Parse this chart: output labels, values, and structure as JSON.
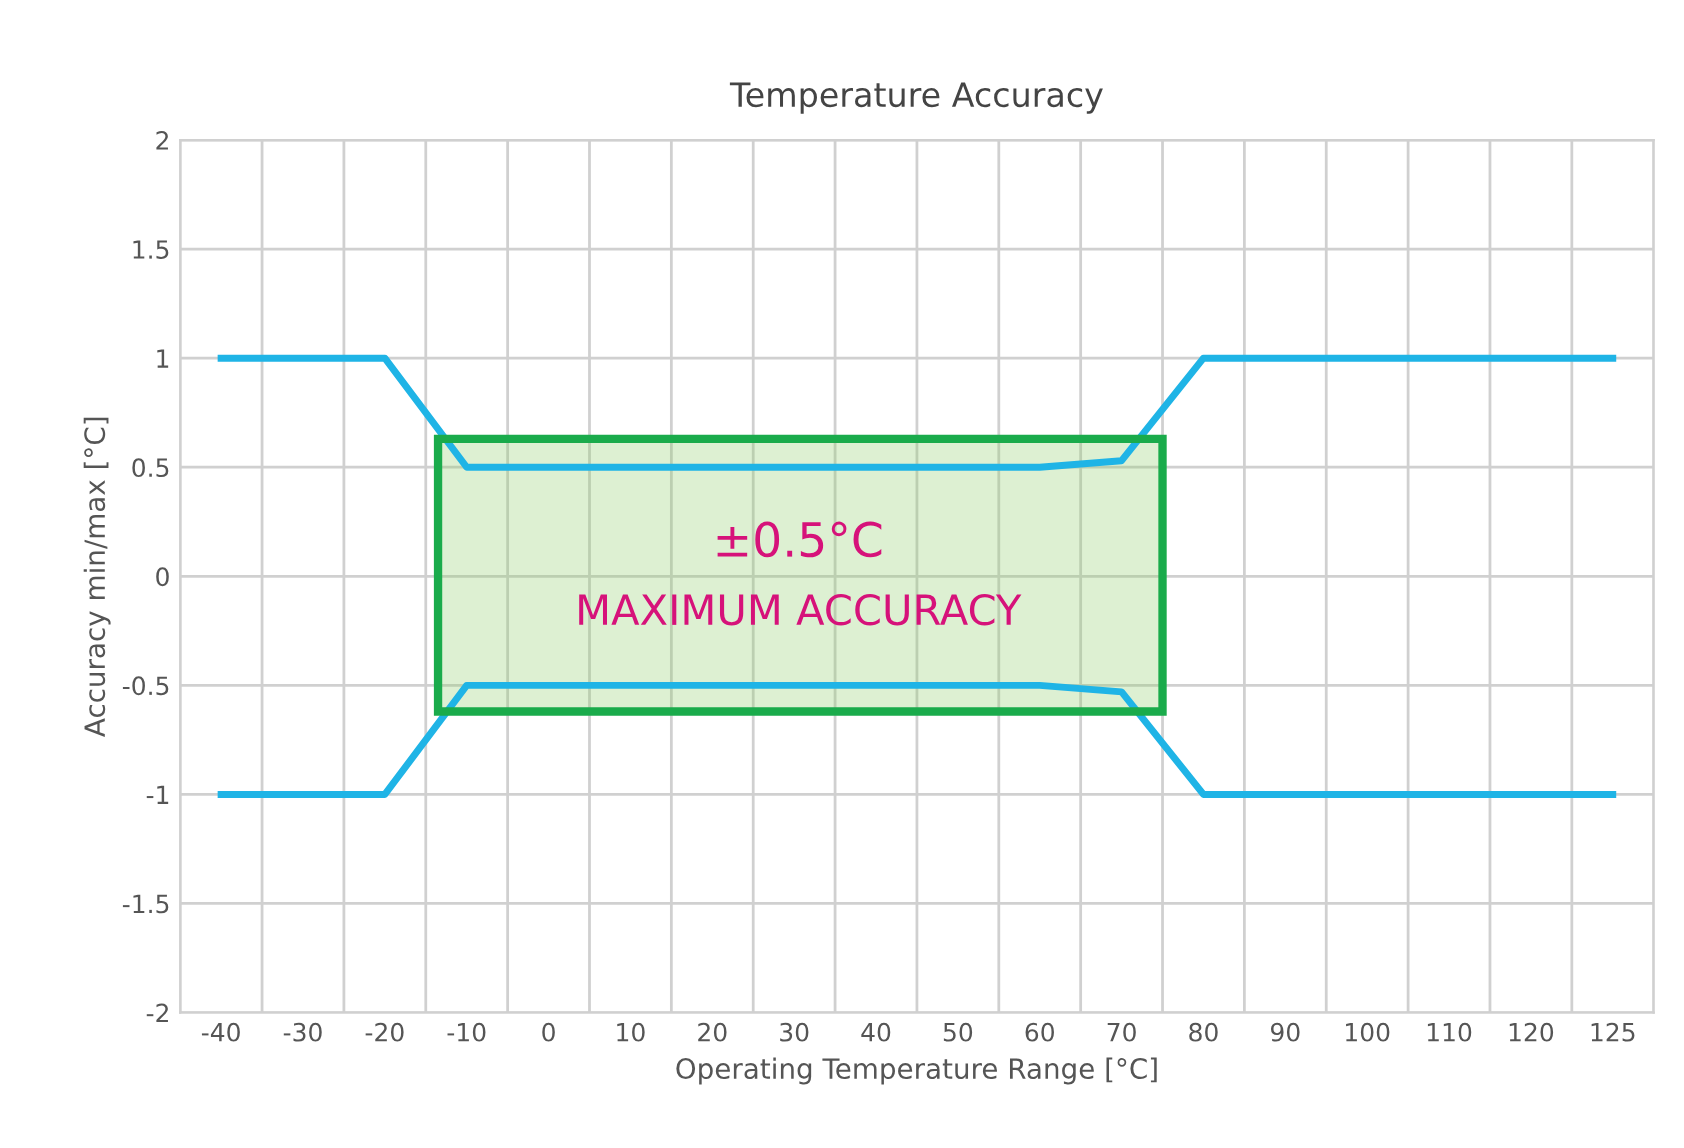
{
  "chart_data": {
    "type": "line",
    "title": "Temperature Accuracy",
    "xlabel": "Operating Temperature Range [°C]",
    "ylabel": "Accuracy min/max [°C]",
    "categories": [
      "-40",
      "-30",
      "-20",
      "-10",
      "0",
      "10",
      "20",
      "30",
      "40",
      "50",
      "60",
      "70",
      "80",
      "90",
      "100",
      "110",
      "120",
      "125"
    ],
    "series": [
      {
        "color": "#1fb4e6",
        "values": [
          1,
          1,
          1,
          0.5,
          0.5,
          0.5,
          0.5,
          0.5,
          0.5,
          0.5,
          0.5,
          0.53,
          1,
          1,
          1,
          1,
          1,
          1
        ]
      },
      {
        "color": "#1fb4e6",
        "values": [
          -1,
          -1,
          -1,
          -0.5,
          -0.5,
          -0.5,
          -0.5,
          -0.5,
          -0.5,
          -0.5,
          -0.5,
          -0.53,
          -1,
          -1,
          -1,
          -1,
          -1,
          -1
        ]
      }
    ],
    "ylim": [
      -2,
      2
    ],
    "yticks": [
      -2,
      -1.5,
      -1,
      -0.5,
      0,
      0.5,
      1,
      1.5,
      2
    ],
    "grid": true,
    "marker": "none",
    "line_style": "solid",
    "annotations": [
      "±0.5°C",
      "MAXIMUM ACCURACY"
    ]
  }
}
